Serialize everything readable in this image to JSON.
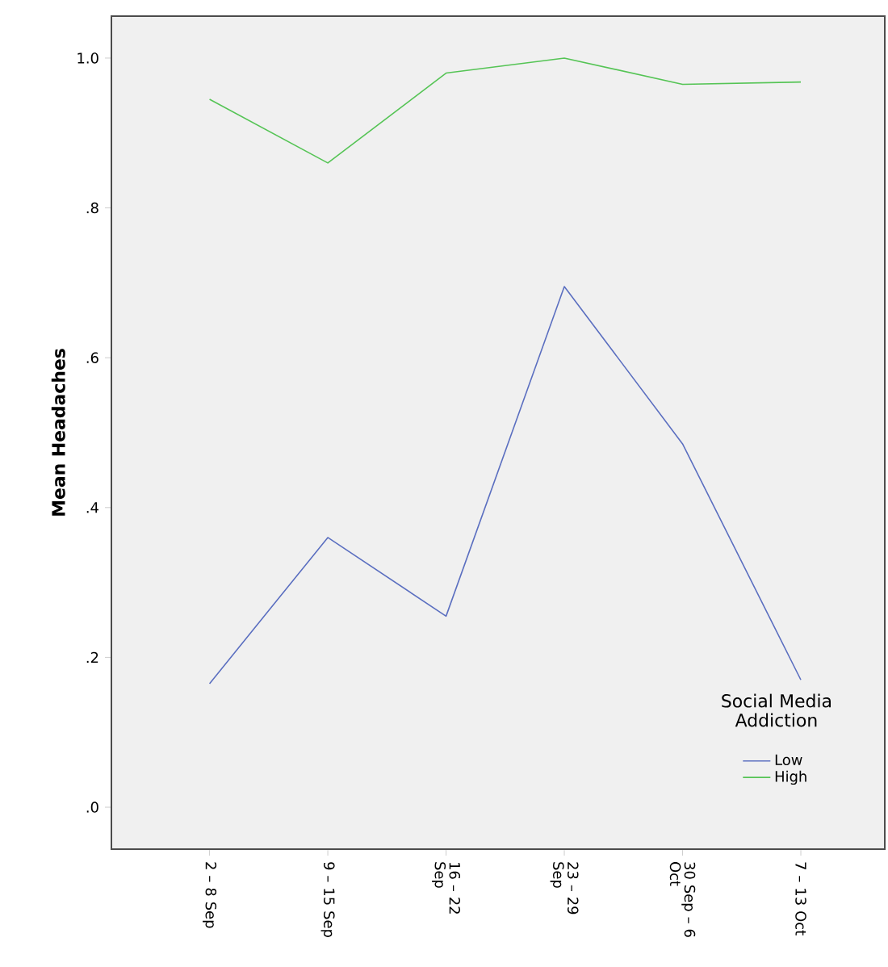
{
  "chart_data": {
    "type": "line",
    "ylabel": "Mean Headaches",
    "legend_title": "Social Media Addiction",
    "categories": [
      "2 – 8 Sep",
      "9 – 15 Sep",
      "16 – 22 Sep",
      "23 – 29 Sep",
      "30 Sep – 6 Oct",
      "7 – 13 Oct"
    ],
    "series": [
      {
        "name": "Low",
        "color": "#5b6fc0",
        "values": [
          0.165,
          0.36,
          0.255,
          0.695,
          0.485,
          0.17
        ]
      },
      {
        "name": "High",
        "color": "#55c455",
        "values": [
          0.945,
          0.86,
          0.98,
          1.0,
          0.965,
          0.968
        ]
      }
    ],
    "ylim": [
      -0.056,
      1.056
    ],
    "yticks": [
      {
        "value": 0,
        "label": ".0"
      },
      {
        "value": 0.2,
        "label": ".2"
      },
      {
        "value": 0.4,
        "label": ".4"
      },
      {
        "value": 0.6,
        "label": ".6"
      },
      {
        "value": 0.8,
        "label": ".8"
      },
      {
        "value": 1.0,
        "label": "1.0"
      }
    ],
    "grid": false,
    "legend": "bottom right",
    "marker": "none",
    "line_style": "solid"
  }
}
